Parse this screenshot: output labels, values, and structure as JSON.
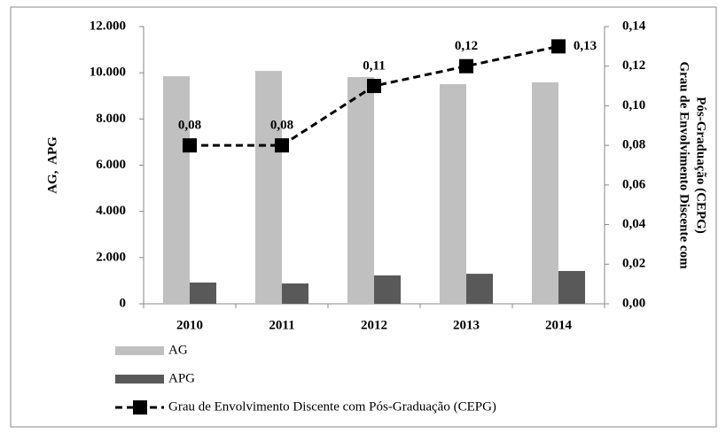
{
  "chart_data": {
    "type": "bar_line",
    "categories": [
      "2010",
      "2011",
      "2012",
      "2013",
      "2014"
    ],
    "series": [
      {
        "name": "AG",
        "color": "#c0c0c0",
        "type": "bar",
        "values": [
          9850,
          10080,
          9815,
          9510,
          9585
        ]
      },
      {
        "name": "APG",
        "color": "#595959",
        "type": "bar",
        "values": [
          920,
          880,
          1230,
          1300,
          1420
        ]
      },
      {
        "name": "Grau de Envolvimento Discente com Pós-Graduação (CEPG)",
        "color": "#000000",
        "type": "line",
        "axis": "y2",
        "values": [
          0.08,
          0.08,
          0.11,
          0.12,
          0.13
        ],
        "value_labels": [
          "0,08",
          "0,08",
          "0,11",
          "0,12",
          "0,13"
        ]
      }
    ],
    "ylabel": "AG,  APG",
    "y2label": [
      "Grau de Envolvimento Discente com",
      "Pós-Graduação (CEPG)"
    ],
    "ylim": [
      0,
      12000
    ],
    "yticks": [
      {
        "value": 0,
        "label": "0"
      },
      {
        "value": 2000,
        "label": "2.000"
      },
      {
        "value": 4000,
        "label": "4.000"
      },
      {
        "value": 6000,
        "label": "6.000"
      },
      {
        "value": 8000,
        "label": "8.000"
      },
      {
        "value": 10000,
        "label": "10.000"
      },
      {
        "value": 12000,
        "label": "12.000"
      }
    ],
    "y2lim": [
      0,
      0.14
    ],
    "y2ticks": [
      {
        "value": 0,
        "label": "0,00"
      },
      {
        "value": 0.02,
        "label": "0,02"
      },
      {
        "value": 0.04,
        "label": "0,04"
      },
      {
        "value": 0.06,
        "label": "0,06"
      },
      {
        "value": 0.08,
        "label": "0,08"
      },
      {
        "value": 0.1,
        "label": "0,10"
      },
      {
        "value": 0.12,
        "label": "0,12"
      },
      {
        "value": 0.14,
        "label": "0,14"
      }
    ]
  }
}
